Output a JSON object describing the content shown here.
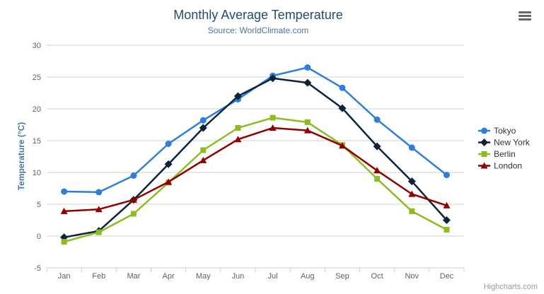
{
  "header": {
    "title": "Monthly Average Temperature",
    "subtitle": "Source: WorldClimate.com"
  },
  "chart_data": {
    "type": "line",
    "title": "Monthly Average Temperature",
    "subtitle": "Source: WorldClimate.com",
    "categories": [
      "Jan",
      "Feb",
      "Mar",
      "Apr",
      "May",
      "Jun",
      "Jul",
      "Aug",
      "Sep",
      "Oct",
      "Nov",
      "Dec"
    ],
    "series": [
      {
        "name": "Tokyo",
        "color": "#2f7ed8",
        "marker": "circle",
        "values": [
          7.0,
          6.9,
          9.5,
          14.5,
          18.2,
          21.5,
          25.2,
          26.5,
          23.3,
          18.3,
          13.9,
          9.6
        ]
      },
      {
        "name": "New York",
        "color": "#0d233a",
        "marker": "diamond",
        "values": [
          -0.2,
          0.8,
          5.7,
          11.3,
          17.0,
          22.0,
          24.8,
          24.1,
          20.1,
          14.1,
          8.6,
          2.5
        ]
      },
      {
        "name": "Berlin",
        "color": "#8bbc21",
        "marker": "square",
        "values": [
          -0.9,
          0.6,
          3.5,
          8.4,
          13.5,
          17.0,
          18.6,
          17.9,
          14.3,
          9.0,
          3.9,
          1.0
        ]
      },
      {
        "name": "London",
        "color": "#910000",
        "marker": "triangle",
        "values": [
          3.9,
          4.2,
          5.7,
          8.5,
          11.9,
          15.2,
          17.0,
          16.6,
          14.2,
          10.3,
          6.6,
          4.8
        ]
      }
    ],
    "xlabel": "",
    "ylabel": "Temperature (°C)",
    "ylim": [
      -5,
      30
    ],
    "y_ticks": [
      -5,
      0,
      5,
      10,
      15,
      20,
      25,
      30
    ],
    "grid": true,
    "legend_position": "right"
  },
  "colors": {
    "title": "#274b6d",
    "subtitle": "#4d759e",
    "axis_title": "#4d759e",
    "tick_label": "#606060",
    "grid": "#d0d0d0",
    "axis_line": "#c0d0e0",
    "legend_text": "#333333",
    "credit": "#999999",
    "menu_icon": "#666666",
    "background": "#ffffff"
  },
  "menu": {
    "icon": "hamburger-icon"
  },
  "credit": {
    "label": "Highcharts.com"
  }
}
